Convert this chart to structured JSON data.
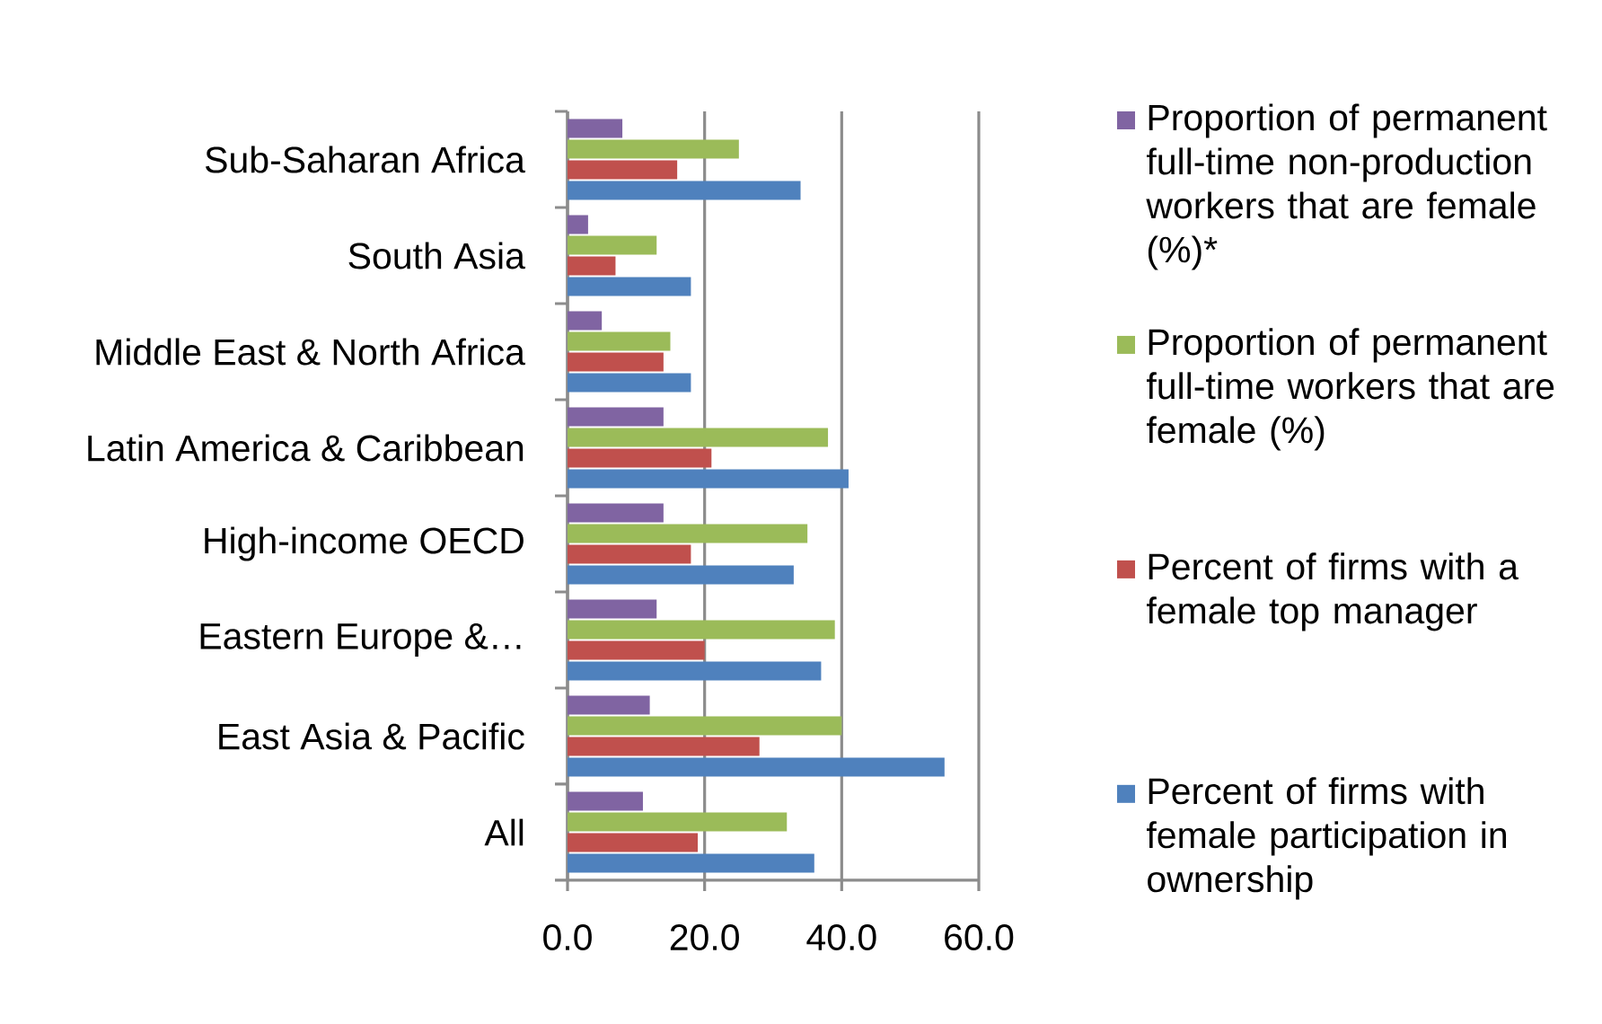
{
  "chart_data": {
    "type": "bar",
    "orientation": "horizontal",
    "categories": [
      "Sub-Saharan Africa",
      "South Asia",
      "Middle East & North Africa",
      "Latin America & Caribbean",
      "High-income OECD",
      "Eastern Europe &…",
      "East Asia & Pacific",
      "All"
    ],
    "series": [
      {
        "name": "Percent of firms with female participation in ownership",
        "color": "#4F81BD",
        "values": [
          34,
          18,
          18,
          41,
          33,
          37,
          55,
          36
        ]
      },
      {
        "name": "Percent of firms with a female top manager",
        "color": "#C0504D",
        "values": [
          16,
          7,
          14,
          21,
          18,
          20,
          28,
          19
        ]
      },
      {
        "name": "Proportion of permanent full-time workers that are female (%)",
        "color": "#9BBB59",
        "values": [
          25,
          13,
          15,
          38,
          35,
          39,
          40,
          32
        ]
      },
      {
        "name": "Proportion of permanent full-time non-production workers that are female (%)*",
        "color": "#8064A2",
        "values": [
          8,
          3,
          5,
          14,
          14,
          13,
          12,
          11
        ]
      }
    ],
    "xlim": [
      0,
      60
    ],
    "xticks": [
      {
        "value": 0,
        "label": "0.0"
      },
      {
        "value": 20,
        "label": "20.0"
      },
      {
        "value": 40,
        "label": "40.0"
      },
      {
        "value": 60,
        "label": "60.0"
      }
    ],
    "grid": "x",
    "legend": "right"
  }
}
